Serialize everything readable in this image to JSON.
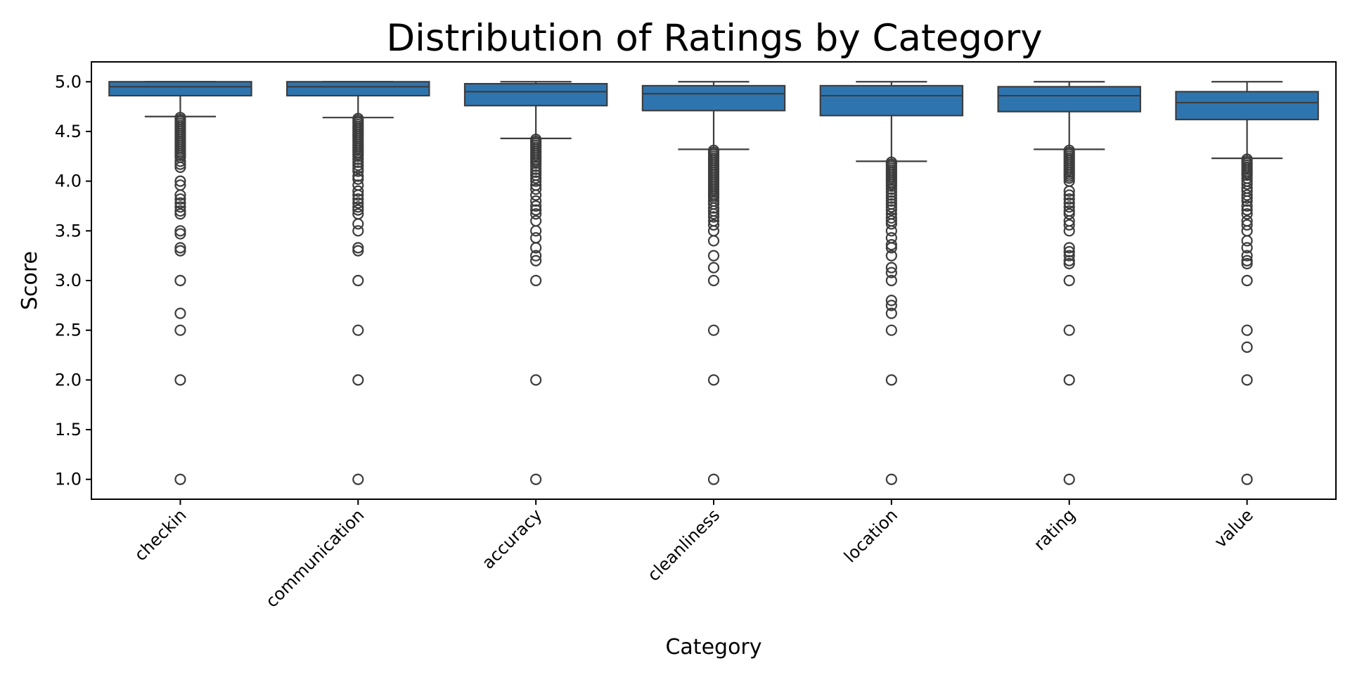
{
  "chart_data": {
    "type": "box",
    "title": "Distribution of Ratings by Category",
    "xlabel": "Category",
    "ylabel": "Score",
    "ylim": [
      0.8,
      5.2
    ],
    "yticks": [
      1.0,
      1.5,
      2.0,
      2.5,
      3.0,
      3.5,
      4.0,
      4.5,
      5.0
    ],
    "ytick_labels": [
      "1.0",
      "1.5",
      "2.0",
      "2.5",
      "3.0",
      "3.5",
      "4.0",
      "4.5",
      "5.0"
    ],
    "grid": false,
    "box_color": "#2e75b0",
    "line_color": "#3d3d3d",
    "categories": [
      "checkin",
      "communication",
      "accuracy",
      "cleanliness",
      "location",
      "rating",
      "value"
    ],
    "boxes": [
      {
        "category": "checkin",
        "q1": 4.86,
        "median": 4.95,
        "q3": 5.0,
        "whisker_low": 4.65,
        "whisker_high": 5.0,
        "fliers": [
          4.64,
          4.62,
          4.6,
          4.58,
          4.56,
          4.54,
          4.52,
          4.5,
          4.48,
          4.46,
          4.44,
          4.42,
          4.4,
          4.38,
          4.36,
          4.34,
          4.32,
          4.3,
          4.28,
          4.26,
          4.24,
          4.2,
          4.17,
          4.14,
          4.0,
          3.96,
          3.86,
          3.82,
          3.78,
          3.74,
          3.7,
          3.67,
          3.5,
          3.47,
          3.33,
          3.3,
          3.0,
          2.67,
          2.5,
          2.0,
          1.0
        ]
      },
      {
        "category": "communication",
        "q1": 4.86,
        "median": 4.95,
        "q3": 5.0,
        "whisker_low": 4.64,
        "whisker_high": 5.0,
        "fliers": [
          4.63,
          4.61,
          4.59,
          4.57,
          4.55,
          4.53,
          4.51,
          4.49,
          4.47,
          4.45,
          4.43,
          4.41,
          4.39,
          4.37,
          4.35,
          4.33,
          4.31,
          4.29,
          4.27,
          4.25,
          4.22,
          4.19,
          4.16,
          4.13,
          4.1,
          4.05,
          4.02,
          3.96,
          3.9,
          3.86,
          3.82,
          3.78,
          3.74,
          3.71,
          3.67,
          3.57,
          3.5,
          3.33,
          3.3,
          3.0,
          2.5,
          2.0,
          1.0
        ]
      },
      {
        "category": "accuracy",
        "q1": 4.76,
        "median": 4.9,
        "q3": 4.98,
        "whisker_low": 4.43,
        "whisker_high": 5.0,
        "fliers": [
          4.42,
          4.4,
          4.38,
          4.36,
          4.34,
          4.32,
          4.3,
          4.28,
          4.26,
          4.24,
          4.22,
          4.2,
          4.18,
          4.15,
          4.12,
          4.09,
          4.06,
          4.03,
          4.0,
          3.96,
          3.92,
          3.86,
          3.8,
          3.75,
          3.71,
          3.67,
          3.6,
          3.5,
          3.43,
          3.33,
          3.25,
          3.2,
          3.0,
          2.0,
          1.0
        ]
      },
      {
        "category": "cleanliness",
        "q1": 4.71,
        "median": 4.88,
        "q3": 4.96,
        "whisker_low": 4.32,
        "whisker_high": 5.0,
        "fliers": [
          4.31,
          4.29,
          4.27,
          4.25,
          4.23,
          4.21,
          4.19,
          4.17,
          4.15,
          4.13,
          4.11,
          4.09,
          4.07,
          4.05,
          4.03,
          4.01,
          3.99,
          3.97,
          3.95,
          3.93,
          3.91,
          3.89,
          3.87,
          3.85,
          3.83,
          3.8,
          3.77,
          3.73,
          3.7,
          3.67,
          3.64,
          3.6,
          3.56,
          3.5,
          3.4,
          3.25,
          3.13,
          3.0,
          2.5,
          2.0,
          1.0
        ]
      },
      {
        "category": "location",
        "q1": 4.66,
        "median": 4.86,
        "q3": 4.96,
        "whisker_low": 4.2,
        "whisker_high": 5.0,
        "fliers": [
          4.19,
          4.17,
          4.15,
          4.13,
          4.11,
          4.09,
          4.07,
          4.05,
          4.03,
          4.01,
          3.99,
          3.97,
          3.95,
          3.92,
          3.89,
          3.86,
          3.83,
          3.8,
          3.77,
          3.74,
          3.71,
          3.67,
          3.63,
          3.6,
          3.57,
          3.5,
          3.43,
          3.36,
          3.33,
          3.25,
          3.13,
          3.08,
          3.0,
          2.8,
          2.75,
          2.67,
          2.5,
          2.0,
          1.0
        ]
      },
      {
        "category": "rating",
        "q1": 4.7,
        "median": 4.86,
        "q3": 4.95,
        "whisker_low": 4.32,
        "whisker_high": 5.0,
        "fliers": [
          4.31,
          4.29,
          4.27,
          4.25,
          4.23,
          4.21,
          4.19,
          4.17,
          4.15,
          4.13,
          4.11,
          4.09,
          4.07,
          4.05,
          4.03,
          4.0,
          3.9,
          3.86,
          3.82,
          3.78,
          3.74,
          3.7,
          3.67,
          3.6,
          3.56,
          3.5,
          3.33,
          3.29,
          3.25,
          3.2,
          3.17,
          3.0,
          2.5,
          2.0,
          1.0
        ]
      },
      {
        "category": "value",
        "q1": 4.62,
        "median": 4.79,
        "q3": 4.9,
        "whisker_low": 4.23,
        "whisker_high": 5.0,
        "fliers": [
          4.22,
          4.2,
          4.18,
          4.16,
          4.14,
          4.12,
          4.1,
          4.08,
          4.06,
          4.03,
          4.0,
          3.97,
          3.93,
          3.9,
          3.86,
          3.83,
          3.8,
          3.75,
          3.71,
          3.67,
          3.6,
          3.56,
          3.5,
          3.4,
          3.33,
          3.25,
          3.2,
          3.17,
          3.0,
          2.5,
          2.33,
          2.0,
          1.0
        ]
      }
    ]
  }
}
